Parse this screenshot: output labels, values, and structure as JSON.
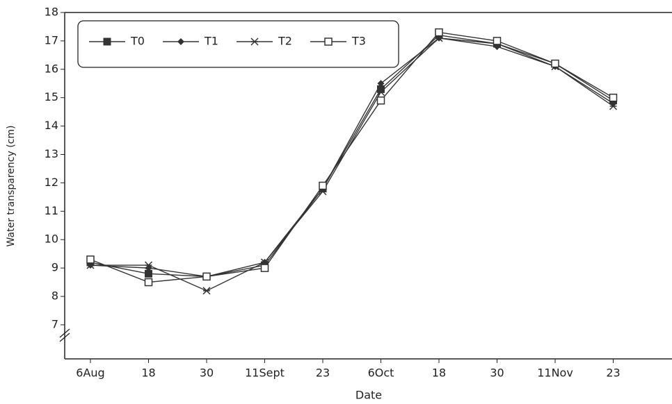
{
  "chart_data": {
    "type": "line",
    "x_label": "Date",
    "y_label": "Water transparency (cm)",
    "categories": [
      "6Aug",
      "18",
      "30",
      "11Sept",
      "23",
      "6Oct",
      "18",
      "30",
      "11Nov",
      "23"
    ],
    "series": [
      {
        "name": "T0",
        "color": "#333333",
        "marker": "filled-square",
        "values": [
          9.2,
          8.8,
          8.7,
          9.1,
          11.8,
          15.3,
          17.2,
          16.9,
          16.2,
          14.9
        ]
      },
      {
        "name": "T1",
        "color": "#333333",
        "marker": "diamond",
        "values": [
          9.1,
          9.0,
          8.7,
          9.2,
          11.8,
          15.5,
          17.1,
          16.8,
          16.1,
          14.8
        ]
      },
      {
        "name": "T2",
        "color": "#333333",
        "marker": "asterisk",
        "values": [
          9.1,
          9.1,
          8.2,
          9.2,
          11.7,
          15.2,
          17.1,
          16.9,
          16.1,
          14.7
        ]
      },
      {
        "name": "T3",
        "color": "#333333",
        "marker": "open-square",
        "values": [
          9.3,
          8.5,
          8.7,
          9.0,
          11.9,
          14.9,
          17.3,
          17.0,
          16.2,
          15.0
        ]
      }
    ],
    "ylim": [
      5.8,
      18
    ],
    "yticks": [
      7,
      8,
      9,
      10,
      11,
      12,
      13,
      14,
      15,
      16,
      17,
      18
    ],
    "legend": "top-left"
  }
}
